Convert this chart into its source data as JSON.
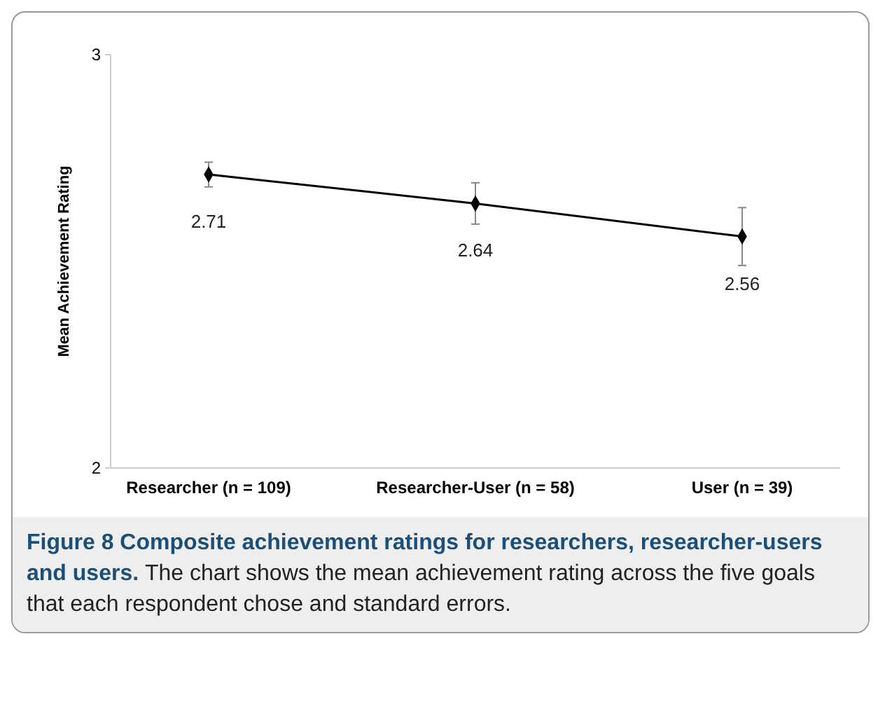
{
  "chart_data": {
    "type": "line",
    "title": "Figure 8 Composite achievement ratings for researchers, researcher-users and users.",
    "ylabel": "Mean Achievement Rating",
    "categories": [
      "Researcher (n = 109)",
      "Researcher-User (n = 58)",
      "User (n = 39)"
    ],
    "series": [
      {
        "color": "#000000",
        "values": [
          2.71,
          2.64,
          2.56
        ],
        "errors": [
          0.03,
          0.05,
          0.07
        ]
      }
    ],
    "ylim": [
      2,
      3
    ],
    "yticks": [
      2,
      3
    ],
    "data_labels": true,
    "marker": "diamond",
    "grid": false,
    "annotations": [
      "The chart shows the mean achievement rating across the five goals that each respondent chose and standard errors."
    ]
  }
}
